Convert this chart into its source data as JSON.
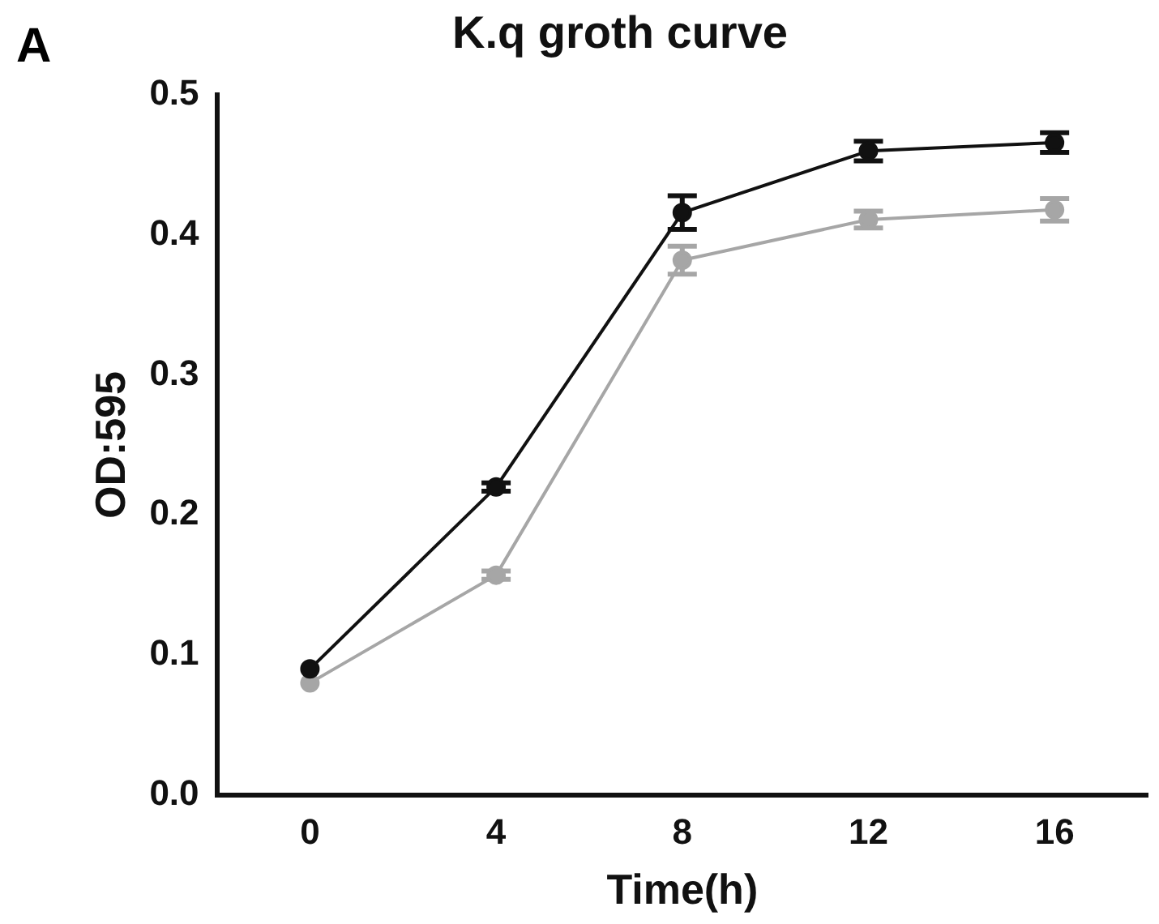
{
  "chart_data": {
    "type": "line",
    "title": "K.q groth curve",
    "xlabel": "Time(h)",
    "ylabel": "OD:595",
    "annotations": [
      "A"
    ],
    "x": [
      0,
      4,
      8,
      12,
      16
    ],
    "series": [
      {
        "color": "#111111",
        "values": [
          0.09,
          0.22,
          0.416,
          0.46,
          0.466
        ],
        "errors": [
          null,
          0.003,
          0.012,
          0.007,
          0.007
        ]
      },
      {
        "color": "#a6a6a6",
        "values": [
          0.08,
          0.157,
          0.382,
          0.411,
          0.418
        ],
        "errors": [
          null,
          0.003,
          0.01,
          0.006,
          0.008
        ]
      }
    ],
    "xlim": [
      -2,
      18
    ],
    "xticks": [
      0,
      4,
      8,
      12,
      16
    ],
    "ylim": [
      0,
      0.5
    ],
    "yticks": [
      {
        "value": 0,
        "label": "0.0"
      },
      {
        "value": 0.1,
        "label": "0.1"
      },
      {
        "value": 0.2,
        "label": "0.2"
      },
      {
        "value": 0.3,
        "label": "0.3"
      },
      {
        "value": 0.4,
        "label": "0.4"
      },
      {
        "value": 0.5,
        "label": "0.5"
      }
    ],
    "grid": false,
    "marker": "circle",
    "line_style": "solid"
  }
}
